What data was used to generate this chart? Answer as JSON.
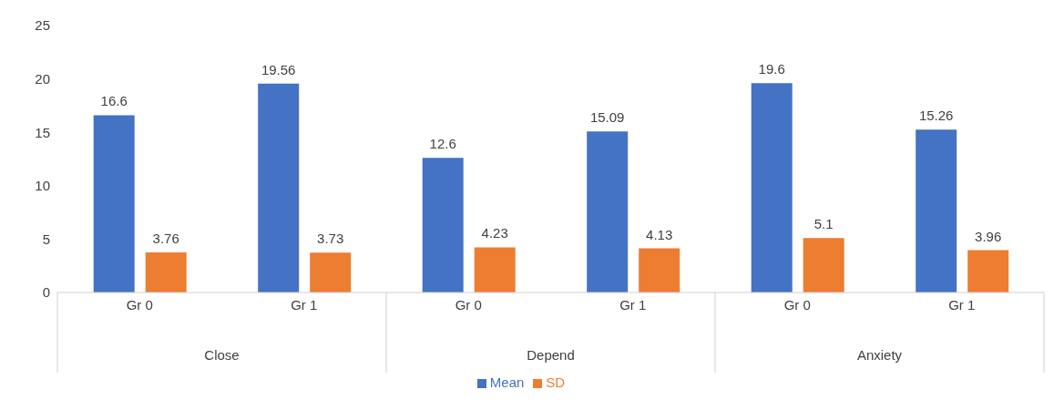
{
  "chart_data": {
    "type": "bar",
    "categories": [
      "Gr 0",
      "Gr 1",
      "Gr 0",
      "Gr 1",
      "Gr 0",
      "Gr 1"
    ],
    "annotations": [
      "Close",
      "Depend",
      "Anxiety"
    ],
    "series": [
      {
        "name": "Mean",
        "color": "#4472c4",
        "values": [
          16.6,
          19.56,
          12.6,
          15.09,
          19.6,
          15.26
        ]
      },
      {
        "name": "SD",
        "color": "#ed7d31",
        "values": [
          3.76,
          3.73,
          4.23,
          4.13,
          5.1,
          3.96
        ]
      }
    ],
    "ylim": [
      0,
      25
    ],
    "yticks": [
      0,
      5,
      10,
      15,
      20,
      25
    ],
    "grid": false,
    "legend": "bottom",
    "data_labels": true
  }
}
